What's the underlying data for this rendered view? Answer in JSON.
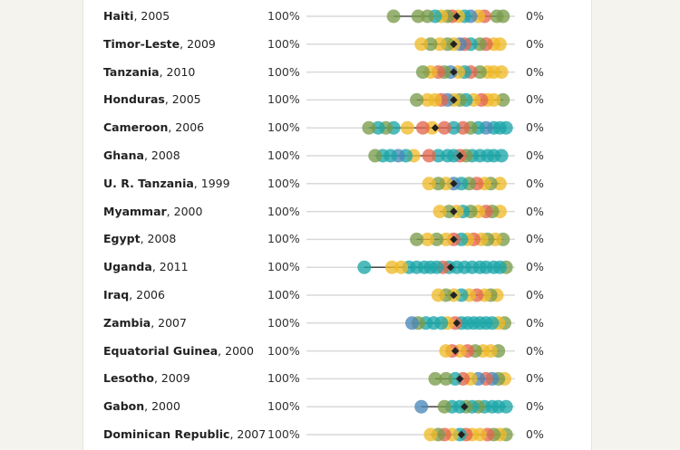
{
  "chart_data": {
    "type": "scatter",
    "axis_left_label": "100%",
    "axis_right_label": "0%",
    "colors": {
      "green": "#7a9c4a",
      "yellow": "#efbb2a",
      "teal": "#1ea6a9",
      "red": "#e4674f",
      "blue": "#4a88b8",
      "marker": "#222222",
      "rule": "#d9d9d9"
    },
    "rows": [
      {
        "country": "Haiti",
        "year": ", 2005",
        "median": 0.64,
        "points": [
          {
            "x": 0.94,
            "c": "green"
          },
          {
            "x": 0.9,
            "c": "green"
          },
          {
            "x": 0.82,
            "c": "red"
          },
          {
            "x": 0.78,
            "c": "yellow"
          },
          {
            "x": 0.73,
            "c": "blue"
          },
          {
            "x": 0.69,
            "c": "teal"
          },
          {
            "x": 0.65,
            "c": "yellow"
          },
          {
            "x": 0.61,
            "c": "red"
          },
          {
            "x": 0.58,
            "c": "green"
          },
          {
            "x": 0.54,
            "c": "yellow"
          },
          {
            "x": 0.5,
            "c": "teal"
          },
          {
            "x": 0.45,
            "c": "green"
          },
          {
            "x": 0.39,
            "c": "green"
          },
          {
            "x": 0.23,
            "c": "green"
          }
        ]
      },
      {
        "country": "Timor-Leste",
        "year": ", 2009",
        "median": 0.62,
        "points": [
          {
            "x": 0.92,
            "c": "yellow"
          },
          {
            "x": 0.88,
            "c": "yellow"
          },
          {
            "x": 0.83,
            "c": "red"
          },
          {
            "x": 0.79,
            "c": "green"
          },
          {
            "x": 0.73,
            "c": "teal"
          },
          {
            "x": 0.69,
            "c": "red"
          },
          {
            "x": 0.66,
            "c": "blue"
          },
          {
            "x": 0.62,
            "c": "yellow"
          },
          {
            "x": 0.58,
            "c": "green"
          },
          {
            "x": 0.53,
            "c": "yellow"
          },
          {
            "x": 0.47,
            "c": "green"
          },
          {
            "x": 0.41,
            "c": "yellow"
          }
        ]
      },
      {
        "country": "Tanzania",
        "year": ", 2010",
        "median": 0.62,
        "points": [
          {
            "x": 0.93,
            "c": "yellow"
          },
          {
            "x": 0.88,
            "c": "yellow"
          },
          {
            "x": 0.84,
            "c": "yellow"
          },
          {
            "x": 0.79,
            "c": "green"
          },
          {
            "x": 0.73,
            "c": "red"
          },
          {
            "x": 0.69,
            "c": "teal"
          },
          {
            "x": 0.65,
            "c": "yellow"
          },
          {
            "x": 0.6,
            "c": "blue"
          },
          {
            "x": 0.56,
            "c": "green"
          },
          {
            "x": 0.52,
            "c": "red"
          },
          {
            "x": 0.47,
            "c": "yellow"
          },
          {
            "x": 0.42,
            "c": "green"
          }
        ]
      },
      {
        "country": "Honduras",
        "year": ", 2005",
        "median": 0.62,
        "points": [
          {
            "x": 0.94,
            "c": "green"
          },
          {
            "x": 0.88,
            "c": "yellow"
          },
          {
            "x": 0.84,
            "c": "yellow"
          },
          {
            "x": 0.8,
            "c": "red"
          },
          {
            "x": 0.75,
            "c": "yellow"
          },
          {
            "x": 0.7,
            "c": "teal"
          },
          {
            "x": 0.66,
            "c": "green"
          },
          {
            "x": 0.62,
            "c": "yellow"
          },
          {
            "x": 0.58,
            "c": "blue"
          },
          {
            "x": 0.54,
            "c": "red"
          },
          {
            "x": 0.5,
            "c": "yellow"
          },
          {
            "x": 0.45,
            "c": "yellow"
          },
          {
            "x": 0.38,
            "c": "green"
          }
        ]
      },
      {
        "country": "Cameroon",
        "year": ", 2006",
        "median": 0.5,
        "points": [
          {
            "x": 0.96,
            "c": "teal"
          },
          {
            "x": 0.92,
            "c": "teal"
          },
          {
            "x": 0.88,
            "c": "teal"
          },
          {
            "x": 0.83,
            "c": "blue"
          },
          {
            "x": 0.78,
            "c": "teal"
          },
          {
            "x": 0.73,
            "c": "green"
          },
          {
            "x": 0.68,
            "c": "red"
          },
          {
            "x": 0.62,
            "c": "teal"
          },
          {
            "x": 0.56,
            "c": "red"
          },
          {
            "x": 0.48,
            "c": "yellow"
          },
          {
            "x": 0.42,
            "c": "red"
          },
          {
            "x": 0.32,
            "c": "yellow"
          },
          {
            "x": 0.23,
            "c": "teal"
          },
          {
            "x": 0.18,
            "c": "green"
          },
          {
            "x": 0.13,
            "c": "teal"
          },
          {
            "x": 0.07,
            "c": "green"
          }
        ]
      },
      {
        "country": "Ghana",
        "year": ", 2008",
        "median": 0.66,
        "points": [
          {
            "x": 0.93,
            "c": "teal"
          },
          {
            "x": 0.88,
            "c": "teal"
          },
          {
            "x": 0.84,
            "c": "teal"
          },
          {
            "x": 0.79,
            "c": "teal"
          },
          {
            "x": 0.74,
            "c": "teal"
          },
          {
            "x": 0.7,
            "c": "green"
          },
          {
            "x": 0.66,
            "c": "red"
          },
          {
            "x": 0.62,
            "c": "teal"
          },
          {
            "x": 0.58,
            "c": "teal"
          },
          {
            "x": 0.52,
            "c": "teal"
          },
          {
            "x": 0.46,
            "c": "red"
          },
          {
            "x": 0.36,
            "c": "yellow"
          },
          {
            "x": 0.31,
            "c": "teal"
          },
          {
            "x": 0.26,
            "c": "blue"
          },
          {
            "x": 0.21,
            "c": "teal"
          },
          {
            "x": 0.16,
            "c": "teal"
          },
          {
            "x": 0.11,
            "c": "green"
          }
        ]
      },
      {
        "country": "U. R. Tanzania",
        "year": ", 1999",
        "median": 0.62,
        "points": [
          {
            "x": 0.92,
            "c": "yellow"
          },
          {
            "x": 0.86,
            "c": "green"
          },
          {
            "x": 0.82,
            "c": "yellow"
          },
          {
            "x": 0.77,
            "c": "red"
          },
          {
            "x": 0.72,
            "c": "green"
          },
          {
            "x": 0.67,
            "c": "teal"
          },
          {
            "x": 0.62,
            "c": "blue"
          },
          {
            "x": 0.57,
            "c": "yellow"
          },
          {
            "x": 0.52,
            "c": "green"
          },
          {
            "x": 0.46,
            "c": "yellow"
          }
        ]
      },
      {
        "country": "Myammar",
        "year": ", 2000",
        "median": 0.62,
        "points": [
          {
            "x": 0.92,
            "c": "yellow"
          },
          {
            "x": 0.87,
            "c": "green"
          },
          {
            "x": 0.83,
            "c": "red"
          },
          {
            "x": 0.78,
            "c": "yellow"
          },
          {
            "x": 0.73,
            "c": "green"
          },
          {
            "x": 0.68,
            "c": "teal"
          },
          {
            "x": 0.64,
            "c": "yellow"
          },
          {
            "x": 0.59,
            "c": "green"
          },
          {
            "x": 0.53,
            "c": "yellow"
          }
        ]
      },
      {
        "country": "Egypt",
        "year": ", 2008",
        "median": 0.62,
        "points": [
          {
            "x": 0.94,
            "c": "green"
          },
          {
            "x": 0.89,
            "c": "yellow"
          },
          {
            "x": 0.84,
            "c": "green"
          },
          {
            "x": 0.8,
            "c": "yellow"
          },
          {
            "x": 0.75,
            "c": "red"
          },
          {
            "x": 0.71,
            "c": "yellow"
          },
          {
            "x": 0.67,
            "c": "teal"
          },
          {
            "x": 0.62,
            "c": "red"
          },
          {
            "x": 0.57,
            "c": "yellow"
          },
          {
            "x": 0.51,
            "c": "green"
          },
          {
            "x": 0.45,
            "c": "yellow"
          },
          {
            "x": 0.38,
            "c": "green"
          }
        ]
      },
      {
        "country": "Uganda",
        "year": ", 2011",
        "median": 0.6,
        "points": [
          {
            "x": 0.96,
            "c": "green"
          },
          {
            "x": 0.92,
            "c": "teal"
          },
          {
            "x": 0.88,
            "c": "teal"
          },
          {
            "x": 0.83,
            "c": "teal"
          },
          {
            "x": 0.79,
            "c": "teal"
          },
          {
            "x": 0.74,
            "c": "teal"
          },
          {
            "x": 0.69,
            "c": "teal"
          },
          {
            "x": 0.64,
            "c": "teal"
          },
          {
            "x": 0.59,
            "c": "teal"
          },
          {
            "x": 0.55,
            "c": "red"
          },
          {
            "x": 0.51,
            "c": "teal"
          },
          {
            "x": 0.47,
            "c": "teal"
          },
          {
            "x": 0.43,
            "c": "teal"
          },
          {
            "x": 0.38,
            "c": "teal"
          },
          {
            "x": 0.33,
            "c": "teal"
          },
          {
            "x": 0.28,
            "c": "yellow"
          },
          {
            "x": 0.22,
            "c": "yellow"
          },
          {
            "x": 0.04,
            "c": "teal"
          }
        ]
      },
      {
        "country": "Iraq",
        "year": ", 2006",
        "median": 0.62,
        "points": [
          {
            "x": 0.9,
            "c": "yellow"
          },
          {
            "x": 0.86,
            "c": "green"
          },
          {
            "x": 0.82,
            "c": "yellow"
          },
          {
            "x": 0.77,
            "c": "red"
          },
          {
            "x": 0.72,
            "c": "yellow"
          },
          {
            "x": 0.67,
            "c": "teal"
          },
          {
            "x": 0.62,
            "c": "yellow"
          },
          {
            "x": 0.57,
            "c": "green"
          },
          {
            "x": 0.52,
            "c": "yellow"
          }
        ]
      },
      {
        "country": "Zambia",
        "year": ", 2007",
        "median": 0.64,
        "points": [
          {
            "x": 0.95,
            "c": "green"
          },
          {
            "x": 0.91,
            "c": "yellow"
          },
          {
            "x": 0.87,
            "c": "teal"
          },
          {
            "x": 0.83,
            "c": "teal"
          },
          {
            "x": 0.79,
            "c": "teal"
          },
          {
            "x": 0.75,
            "c": "teal"
          },
          {
            "x": 0.71,
            "c": "teal"
          },
          {
            "x": 0.67,
            "c": "teal"
          },
          {
            "x": 0.63,
            "c": "red"
          },
          {
            "x": 0.58,
            "c": "yellow"
          },
          {
            "x": 0.54,
            "c": "teal"
          },
          {
            "x": 0.49,
            "c": "teal"
          },
          {
            "x": 0.44,
            "c": "teal"
          },
          {
            "x": 0.39,
            "c": "green"
          },
          {
            "x": 0.35,
            "c": "blue"
          }
        ]
      },
      {
        "country": "Equatorial Guinea",
        "year": ", 2000",
        "median": 0.63,
        "points": [
          {
            "x": 0.91,
            "c": "green"
          },
          {
            "x": 0.86,
            "c": "yellow"
          },
          {
            "x": 0.81,
            "c": "yellow"
          },
          {
            "x": 0.76,
            "c": "green"
          },
          {
            "x": 0.71,
            "c": "red"
          },
          {
            "x": 0.66,
            "c": "yellow"
          },
          {
            "x": 0.61,
            "c": "red"
          },
          {
            "x": 0.57,
            "c": "yellow"
          }
        ]
      },
      {
        "country": "Lesotho",
        "year": ", 2009",
        "median": 0.66,
        "points": [
          {
            "x": 0.95,
            "c": "yellow"
          },
          {
            "x": 0.91,
            "c": "green"
          },
          {
            "x": 0.87,
            "c": "blue"
          },
          {
            "x": 0.83,
            "c": "red"
          },
          {
            "x": 0.78,
            "c": "blue"
          },
          {
            "x": 0.73,
            "c": "yellow"
          },
          {
            "x": 0.68,
            "c": "red"
          },
          {
            "x": 0.63,
            "c": "teal"
          },
          {
            "x": 0.57,
            "c": "green"
          },
          {
            "x": 0.5,
            "c": "green"
          }
        ]
      },
      {
        "country": "Gabon",
        "year": ", 2000",
        "median": 0.69,
        "points": [
          {
            "x": 0.96,
            "c": "teal"
          },
          {
            "x": 0.91,
            "c": "teal"
          },
          {
            "x": 0.87,
            "c": "teal"
          },
          {
            "x": 0.82,
            "c": "teal"
          },
          {
            "x": 0.78,
            "c": "green"
          },
          {
            "x": 0.74,
            "c": "teal"
          },
          {
            "x": 0.7,
            "c": "green"
          },
          {
            "x": 0.66,
            "c": "teal"
          },
          {
            "x": 0.61,
            "c": "teal"
          },
          {
            "x": 0.56,
            "c": "green"
          },
          {
            "x": 0.41,
            "c": "blue"
          }
        ]
      },
      {
        "country": "Dominican Republic",
        "year": ", 2007",
        "median": 0.67,
        "points": [
          {
            "x": 0.96,
            "c": "green"
          },
          {
            "x": 0.92,
            "c": "yellow"
          },
          {
            "x": 0.88,
            "c": "green"
          },
          {
            "x": 0.84,
            "c": "red"
          },
          {
            "x": 0.79,
            "c": "yellow"
          },
          {
            "x": 0.74,
            "c": "yellow"
          },
          {
            "x": 0.7,
            "c": "red"
          },
          {
            "x": 0.66,
            "c": "teal"
          },
          {
            "x": 0.61,
            "c": "yellow"
          },
          {
            "x": 0.56,
            "c": "red"
          },
          {
            "x": 0.52,
            "c": "green"
          },
          {
            "x": 0.47,
            "c": "yellow"
          }
        ]
      }
    ]
  }
}
